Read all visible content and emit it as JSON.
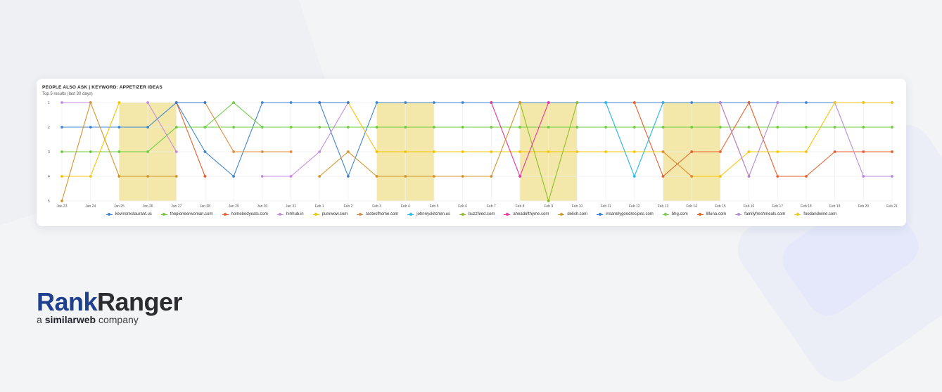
{
  "card": {
    "title": "PEOPLE ALSO ASK | KEYWORD: APPETIZER IDEAS",
    "subtitle": "Top 5 results (last 30 days)"
  },
  "branding": {
    "logo_rank": "Rank",
    "logo_ranger": "Ranger",
    "tagline_prefix": "a",
    "tagline_brand": "similarweb",
    "tagline_suffix": "company"
  },
  "chart_data": {
    "type": "line",
    "title": "PEOPLE ALSO ASK | KEYWORD: APPETIZER IDEAS",
    "subtitle": "Top 5 results (last 30 days)",
    "x": [
      "Jan 23",
      "Jan 24",
      "Jan 25",
      "Jan 26",
      "Jan 27",
      "Jan 28",
      "Jan 29",
      "Jan 30",
      "Jan 31",
      "Feb 1",
      "Feb 2",
      "Feb 3",
      "Feb 4",
      "Feb 5",
      "Feb 6",
      "Feb 7",
      "Feb 8",
      "Feb 9",
      "Feb 10",
      "Feb 11",
      "Feb 12",
      "Feb 13",
      "Feb 14",
      "Feb 15",
      "Feb 16",
      "Feb 17",
      "Feb 18",
      "Feb 19",
      "Feb 20",
      "Feb 21"
    ],
    "ylim": [
      1,
      5
    ],
    "y_reversed": true,
    "yticks": [
      1,
      2,
      3,
      4,
      5
    ],
    "grid": true,
    "legend_position": "bottom",
    "highlight_bands": [
      [
        "Jan 25",
        "Jan 27"
      ],
      [
        "Feb 3",
        "Feb 5"
      ],
      [
        "Feb 8",
        "Feb 10"
      ],
      [
        "Feb 13",
        "Feb 15"
      ]
    ],
    "highlight_color": "#f3e8a9",
    "series": [
      {
        "name": "kevinsrestaurant.us",
        "color": "#3f85d1",
        "values": [
          2,
          2,
          2,
          2,
          1,
          3,
          4,
          1,
          1,
          1,
          4,
          1,
          1,
          1,
          1,
          1,
          1,
          1,
          1,
          1,
          1,
          1,
          1,
          1,
          1,
          1,
          1,
          1,
          1,
          1
        ]
      },
      {
        "name": "thepioneerwoman.com",
        "color": "#6ccb3c",
        "values": [
          3,
          3,
          3,
          3,
          2,
          2,
          2,
          2,
          2,
          2,
          2,
          2,
          2,
          2,
          2,
          2,
          2,
          2,
          2,
          2,
          2,
          2,
          2,
          2,
          2,
          2,
          2,
          2,
          2,
          2
        ]
      },
      {
        "name": "homebodyeats.com",
        "color": "#e8612c",
        "values": [
          null,
          null,
          null,
          null,
          1,
          4,
          null,
          null,
          null,
          null,
          null,
          null,
          null,
          null,
          null,
          null,
          null,
          null,
          null,
          null,
          1,
          4,
          3,
          3,
          1,
          4,
          4,
          3,
          3,
          3
        ]
      },
      {
        "name": "hmhub.in",
        "color": "#c68be0",
        "values": [
          1,
          1,
          null,
          1,
          3,
          null,
          null,
          4,
          4,
          3,
          1,
          null,
          null,
          null,
          null,
          null,
          null,
          null,
          null,
          null,
          null,
          null,
          null,
          null,
          null,
          null,
          null,
          null,
          null,
          null
        ]
      },
      {
        "name": "purewow.com",
        "color": "#f5c400",
        "values": [
          4,
          4,
          1,
          null,
          null,
          null,
          null,
          null,
          null,
          null,
          1,
          3,
          3,
          3,
          3,
          3,
          3,
          3,
          3,
          3,
          3,
          3,
          4,
          4,
          3,
          3,
          3,
          1,
          null,
          null
        ]
      },
      {
        "name": "tasteofhome.com",
        "color": "#e08a3a",
        "values": [
          null,
          null,
          null,
          null,
          null,
          1,
          3,
          3,
          3,
          null,
          null,
          null,
          null,
          null,
          null,
          null,
          null,
          null,
          null,
          null,
          null,
          3,
          4,
          null,
          null,
          null,
          null,
          null,
          null,
          null
        ]
      },
      {
        "name": "johnnyskitchen.us",
        "color": "#29b6e8",
        "values": [
          null,
          null,
          null,
          null,
          null,
          null,
          null,
          null,
          null,
          null,
          null,
          null,
          null,
          null,
          null,
          null,
          null,
          null,
          null,
          1,
          4,
          1,
          null,
          null,
          null,
          null,
          null,
          null,
          null,
          null
        ]
      },
      {
        "name": "buzzfeed.com",
        "color": "#8cbf26",
        "values": [
          null,
          null,
          null,
          null,
          null,
          null,
          null,
          null,
          null,
          null,
          null,
          null,
          null,
          null,
          null,
          null,
          1,
          5,
          1,
          null,
          null,
          null,
          null,
          null,
          null,
          null,
          null,
          null,
          null,
          null
        ]
      },
      {
        "name": "aheadofthyme.com",
        "color": "#e8369e",
        "values": [
          null,
          null,
          null,
          null,
          null,
          null,
          null,
          null,
          null,
          null,
          null,
          null,
          null,
          null,
          null,
          1,
          4,
          1,
          null,
          null,
          null,
          null,
          null,
          null,
          null,
          null,
          null,
          null,
          null,
          null
        ]
      },
      {
        "name": "delish.com",
        "color": "#d4962a",
        "values": [
          5,
          1,
          4,
          4,
          4,
          null,
          null,
          null,
          null,
          4,
          3,
          4,
          4,
          4,
          4,
          4,
          1,
          null,
          null,
          null,
          null,
          null,
          null,
          null,
          null,
          null,
          null,
          null,
          null,
          null
        ]
      },
      {
        "name": "insanelygoodrecipes.com",
        "color": "#3a78c9",
        "values": [
          null,
          null,
          null,
          null,
          1,
          1,
          null,
          null,
          null,
          1,
          1,
          null,
          null,
          null,
          null,
          null,
          null,
          null,
          null,
          null,
          null,
          null,
          null,
          null,
          null,
          null,
          null,
          null,
          null,
          null
        ]
      },
      {
        "name": "bhg.com",
        "color": "#6fcf4a",
        "values": [
          null,
          null,
          null,
          null,
          null,
          2,
          1,
          2,
          null,
          null,
          null,
          null,
          null,
          null,
          null,
          null,
          null,
          null,
          null,
          null,
          null,
          null,
          null,
          null,
          null,
          null,
          null,
          null,
          null,
          null
        ]
      },
      {
        "name": "lilluna.com",
        "color": "#e5621f",
        "values": [
          null,
          null,
          null,
          null,
          null,
          null,
          null,
          null,
          null,
          null,
          null,
          null,
          null,
          null,
          null,
          null,
          null,
          null,
          null,
          null,
          null,
          null,
          null,
          1,
          4,
          null,
          null,
          null,
          null,
          null
        ]
      },
      {
        "name": "familyfreshmeals.com",
        "color": "#b98ad9",
        "values": [
          null,
          null,
          null,
          null,
          null,
          null,
          null,
          null,
          null,
          null,
          null,
          null,
          null,
          null,
          null,
          null,
          null,
          null,
          null,
          null,
          null,
          null,
          null,
          1,
          4,
          1,
          null,
          1,
          4,
          4
        ]
      },
      {
        "name": "foodandwine.com",
        "color": "#f5c518",
        "values": [
          null,
          null,
          null,
          null,
          null,
          null,
          null,
          null,
          null,
          null,
          null,
          null,
          null,
          null,
          null,
          null,
          null,
          null,
          null,
          null,
          null,
          null,
          null,
          null,
          null,
          null,
          null,
          1,
          1,
          1
        ]
      }
    ]
  }
}
